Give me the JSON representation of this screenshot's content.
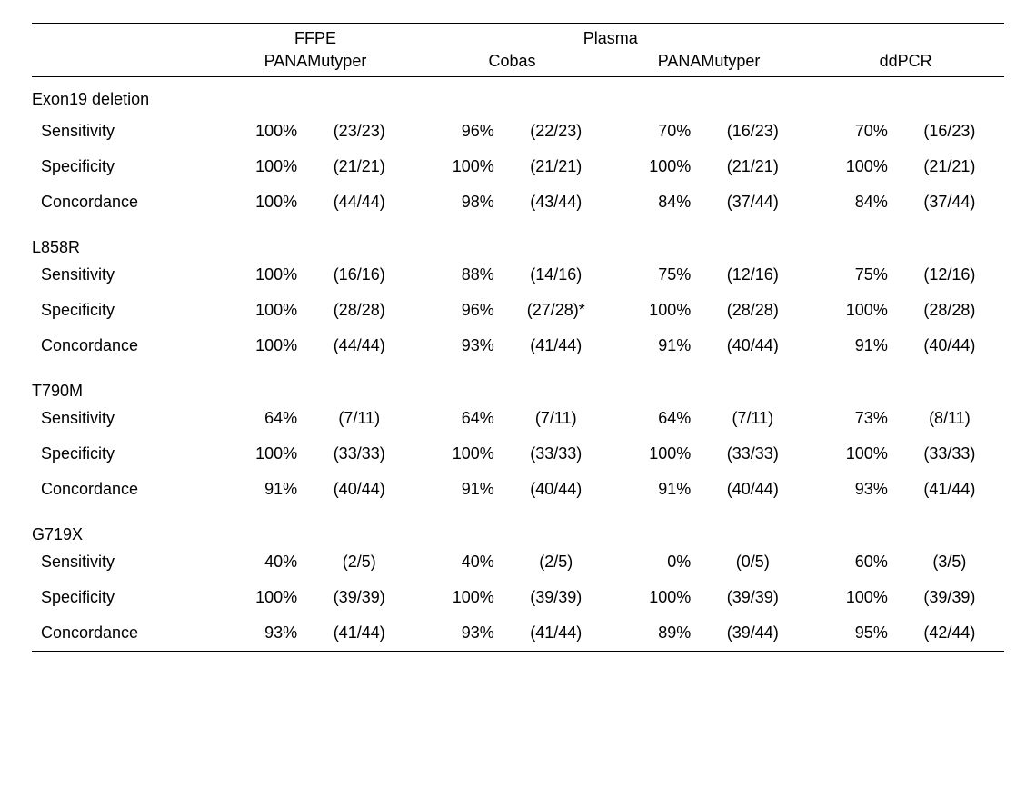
{
  "headers": {
    "ffpe": "FFPE",
    "plasma": "Plasma",
    "panamutyper1": "PANAMutyper",
    "cobas": "Cobas",
    "panamutyper2": "PANAMutyper",
    "ddpcr": "ddPCR"
  },
  "sections": {
    "exon19": "Exon19 deletion",
    "l858r": "L858R",
    "t790m": "T790M",
    "g719x": "G719X"
  },
  "metrics": {
    "sens": "Sensitivity",
    "spec": "Specificity",
    "conc": "Concordance"
  },
  "rows": {
    "e19_sens": {
      "c1p": "100%",
      "c1f": "(23/23)",
      "c2p": "96%",
      "c2f": "(22/23)",
      "c3p": "70%",
      "c3f": "(16/23)",
      "c4p": "70%",
      "c4f": "(16/23)"
    },
    "e19_spec": {
      "c1p": "100%",
      "c1f": "(21/21)",
      "c2p": "100%",
      "c2f": "(21/21)",
      "c3p": "100%",
      "c3f": "(21/21)",
      "c4p": "100%",
      "c4f": "(21/21)"
    },
    "e19_conc": {
      "c1p": "100%",
      "c1f": "(44/44)",
      "c2p": "98%",
      "c2f": "(43/44)",
      "c3p": "84%",
      "c3f": "(37/44)",
      "c4p": "84%",
      "c4f": "(37/44)"
    },
    "l858r_sens": {
      "c1p": "100%",
      "c1f": "(16/16)",
      "c2p": "88%",
      "c2f": "(14/16)",
      "c3p": "75%",
      "c3f": "(12/16)",
      "c4p": "75%",
      "c4f": "(12/16)"
    },
    "l858r_spec": {
      "c1p": "100%",
      "c1f": "(28/28)",
      "c2p": "96%",
      "c2f": "(27/28)*",
      "c3p": "100%",
      "c3f": "(28/28)",
      "c4p": "100%",
      "c4f": "(28/28)"
    },
    "l858r_conc": {
      "c1p": "100%",
      "c1f": "(44/44)",
      "c2p": "93%",
      "c2f": "(41/44)",
      "c3p": "91%",
      "c3f": "(40/44)",
      "c4p": "91%",
      "c4f": "(40/44)"
    },
    "t790m_sens": {
      "c1p": "64%",
      "c1f": "(7/11)",
      "c2p": "64%",
      "c2f": "(7/11)",
      "c3p": "64%",
      "c3f": "(7/11)",
      "c4p": "73%",
      "c4f": "(8/11)"
    },
    "t790m_spec": {
      "c1p": "100%",
      "c1f": "(33/33)",
      "c2p": "100%",
      "c2f": "(33/33)",
      "c3p": "100%",
      "c3f": "(33/33)",
      "c4p": "100%",
      "c4f": "(33/33)"
    },
    "t790m_conc": {
      "c1p": "91%",
      "c1f": "(40/44)",
      "c2p": "91%",
      "c2f": "(40/44)",
      "c3p": "91%",
      "c3f": "(40/44)",
      "c4p": "93%",
      "c4f": "(41/44)"
    },
    "g719x_sens": {
      "c1p": "40%",
      "c1f": "(2/5)",
      "c2p": "40%",
      "c2f": "(2/5)",
      "c3p": "0%",
      "c3f": "(0/5)",
      "c4p": "60%",
      "c4f": "(3/5)"
    },
    "g719x_spec": {
      "c1p": "100%",
      "c1f": "(39/39)",
      "c2p": "100%",
      "c2f": "(39/39)",
      "c3p": "100%",
      "c3f": "(39/39)",
      "c4p": "100%",
      "c4f": "(39/39)"
    },
    "g719x_conc": {
      "c1p": "93%",
      "c1f": "(41/44)",
      "c2p": "93%",
      "c2f": "(41/44)",
      "c3p": "89%",
      "c3f": "(39/44)",
      "c4p": "95%",
      "c4f": "(42/44)"
    }
  }
}
